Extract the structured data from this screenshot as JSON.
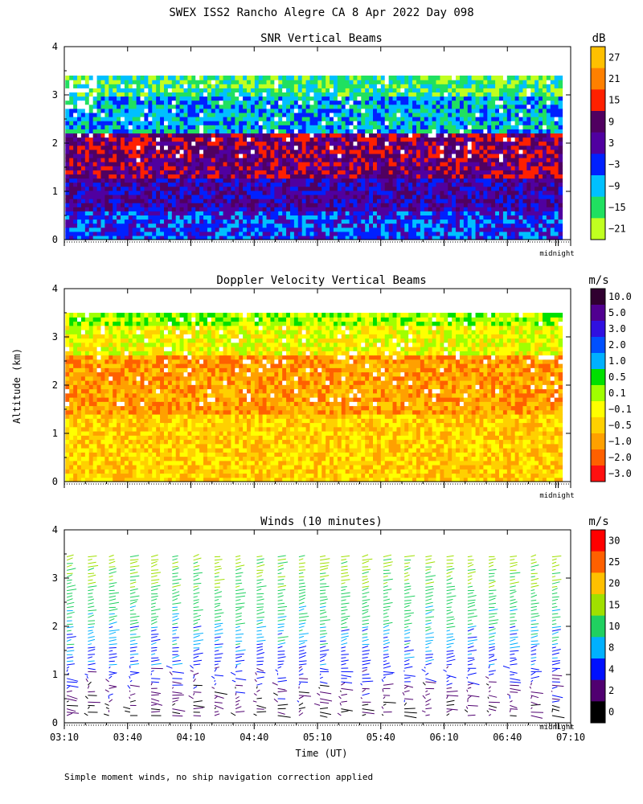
{
  "figure": {
    "title": "SWEX ISS2 Rancho Alegre CA   8 Apr 2022 Day 098",
    "ylabel": "Altitude (km)",
    "xlabel": "Time (UT)",
    "midnight_label": "midnight",
    "footnote": "Simple moment winds, no ship navigation correction applied"
  },
  "chart_data": [
    {
      "id": "snr",
      "type": "heatmap",
      "title": "SNR Vertical Beams",
      "ylabel": "Altitude (km)",
      "ylim": [
        0,
        4
      ],
      "yticks": [
        0,
        1,
        2,
        3,
        4
      ],
      "xlim_minutes_ut": [
        190,
        430
      ],
      "xticks_minutes_ut": [
        190,
        220,
        250,
        280,
        310,
        340,
        370,
        400,
        430
      ],
      "colorbar": {
        "unit": "dB",
        "labels": [
          "27",
          "21",
          "15",
          "9",
          "3",
          "−3",
          "−9",
          "−15",
          "−21"
        ],
        "colors": [
          "#ffc000",
          "#ff8000",
          "#ff2000",
          "#500060",
          "#5000a0",
          "#0020ff",
          "#00c0ff",
          "#20e060",
          "#c0ff20"
        ]
      },
      "data_top_km": 3.4,
      "bands": [
        {
          "from_km": 0.0,
          "to_km": 0.6,
          "value": "−3"
        },
        {
          "from_km": 0.6,
          "to_km": 1.3,
          "value": "3"
        },
        {
          "from_km": 1.3,
          "to_km": 2.2,
          "value": "9"
        },
        {
          "from_km": 2.2,
          "to_km": 3.0,
          "value": "−9"
        },
        {
          "from_km": 3.0,
          "to_km": 3.4,
          "value": "−15"
        }
      ]
    },
    {
      "id": "doppler",
      "type": "heatmap",
      "title": "Doppler Velocity Vertical Beams",
      "ylabel": "Altitude (km)",
      "ylim": [
        0,
        4
      ],
      "yticks": [
        0,
        1,
        2,
        3,
        4
      ],
      "xlim_minutes_ut": [
        190,
        430
      ],
      "xticks_minutes_ut": [
        190,
        220,
        250,
        280,
        310,
        340,
        370,
        400,
        430
      ],
      "colorbar": {
        "unit": "m/s",
        "labels": [
          "10.0",
          "5.0",
          "3.0",
          "2.0",
          "1.0",
          "0.5",
          "0.1",
          "−0.1",
          "−0.5",
          "−1.0",
          "−2.0",
          "−3.0"
        ],
        "colors": [
          "#300030",
          "#500090",
          "#3010e0",
          "#0050ff",
          "#00b0ff",
          "#00e000",
          "#a0ff00",
          "#ffff00",
          "#ffd000",
          "#ffa000",
          "#ff6000",
          "#ff1010"
        ]
      },
      "data_top_km": 3.5,
      "bands": [
        {
          "from_km": 0.0,
          "to_km": 1.4,
          "value": "−0.5"
        },
        {
          "from_km": 1.4,
          "to_km": 2.6,
          "value": "−1.0"
        },
        {
          "from_km": 2.6,
          "to_km": 3.2,
          "value": "−0.1"
        },
        {
          "from_km": 3.2,
          "to_km": 3.5,
          "value": "0.1"
        }
      ]
    },
    {
      "id": "winds",
      "type": "scatter",
      "title": "Winds (10 minutes)",
      "ylabel": "Altitude (km)",
      "xlabel": "Time (UT)",
      "ylim": [
        0,
        4
      ],
      "yticks": [
        0,
        1,
        2,
        3,
        4
      ],
      "xlim_minutes_ut": [
        190,
        430
      ],
      "xticks_minutes_ut": [
        190,
        220,
        250,
        280,
        310,
        340,
        370,
        400,
        430
      ],
      "xtick_labels": [
        "03:10",
        "03:40",
        "04:10",
        "04:40",
        "05:10",
        "05:40",
        "06:10",
        "06:40",
        "07:10"
      ],
      "colorbar": {
        "unit": "m/s",
        "labels": [
          "30",
          "25",
          "20",
          "15",
          "10",
          "8",
          "4",
          "2",
          "0"
        ],
        "colors": [
          "#ff0000",
          "#ff6000",
          "#ffc000",
          "#a0e000",
          "#20d060",
          "#00b0ff",
          "#0010ff",
          "#500070",
          "#000000"
        ]
      },
      "profile_interval_minutes": 10,
      "speed_profile_km_ms": [
        {
          "km": 0.2,
          "speed": 2
        },
        {
          "km": 0.6,
          "speed": 3
        },
        {
          "km": 1.0,
          "speed": 5
        },
        {
          "km": 1.4,
          "speed": 7
        },
        {
          "km": 1.8,
          "speed": 9
        },
        {
          "km": 2.2,
          "speed": 11
        },
        {
          "km": 2.6,
          "speed": 13
        },
        {
          "km": 3.0,
          "speed": 15
        },
        {
          "km": 3.4,
          "speed": 16
        }
      ]
    }
  ]
}
